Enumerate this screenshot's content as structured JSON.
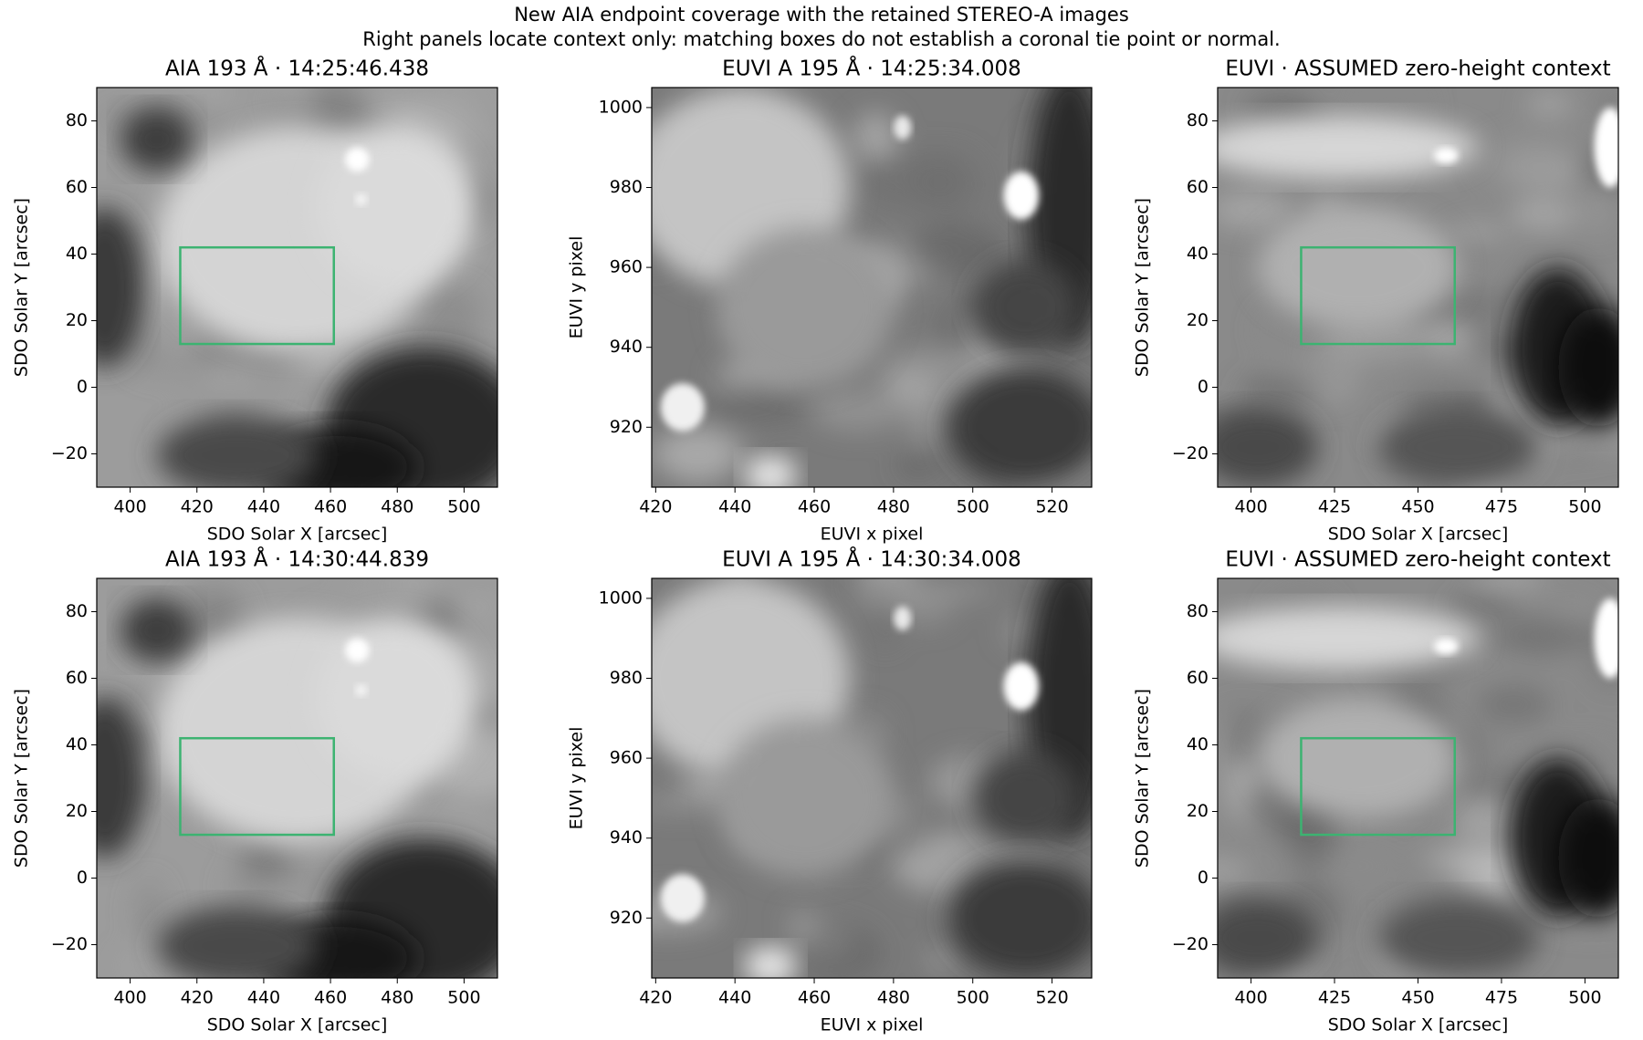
{
  "figure_title": "New AIA endpoint coverage with the retained STEREO-A images",
  "figure_subtitle": "Right panels locate context only: matching boxes do not establish a coronal tie point or normal.",
  "chart_data": [
    {
      "type": "image",
      "title": "AIA 193 Å · 14:25:46.438",
      "xlabel": "SDO Solar X [arcsec]",
      "ylabel": "SDO Solar Y [arcsec]",
      "xlim": [
        390,
        510
      ],
      "ylim": [
        -30,
        90
      ],
      "xticks": [
        400,
        420,
        440,
        460,
        480,
        500
      ],
      "yticks": [
        {
          "value": -20,
          "label": "−20"
        },
        0,
        20,
        40,
        60,
        80
      ],
      "box": {
        "x": [
          415,
          461
        ],
        "y": [
          13,
          42
        ],
        "color": "#3cb371"
      }
    },
    {
      "type": "image",
      "title": "EUVI A 195 Å · 14:25:34.008",
      "xlabel": "EUVI x pixel",
      "ylabel": "EUVI y pixel",
      "xlim": [
        419,
        530
      ],
      "ylim": [
        905,
        1005
      ],
      "xticks": [
        420,
        440,
        460,
        480,
        500,
        520
      ],
      "yticks": [
        920,
        940,
        960,
        980,
        1000
      ]
    },
    {
      "type": "image",
      "title": "EUVI · ASSUMED zero-height context",
      "xlabel": "SDO Solar X [arcsec]",
      "ylabel": "SDO Solar Y [arcsec]",
      "xlim": [
        390,
        510
      ],
      "ylim": [
        -30,
        90
      ],
      "xticks": [
        400,
        425,
        450,
        475,
        500
      ],
      "yticks": [
        {
          "value": -20,
          "label": "−20"
        },
        0,
        20,
        40,
        60,
        80
      ],
      "box": {
        "x": [
          415,
          461
        ],
        "y": [
          13,
          42
        ],
        "color": "#3cb371"
      }
    },
    {
      "type": "image",
      "title": "AIA 193 Å · 14:30:44.839",
      "xlabel": "SDO Solar X [arcsec]",
      "ylabel": "SDO Solar Y [arcsec]",
      "xlim": [
        390,
        510
      ],
      "ylim": [
        -30,
        90
      ],
      "xticks": [
        400,
        420,
        440,
        460,
        480,
        500
      ],
      "yticks": [
        {
          "value": -20,
          "label": "−20"
        },
        0,
        20,
        40,
        60,
        80
      ],
      "box": {
        "x": [
          415,
          461
        ],
        "y": [
          13,
          42
        ],
        "color": "#3cb371"
      }
    },
    {
      "type": "image",
      "title": "EUVI A 195 Å · 14:30:34.008",
      "xlabel": "EUVI x pixel",
      "ylabel": "EUVI y pixel",
      "xlim": [
        419,
        530
      ],
      "ylim": [
        905,
        1005
      ],
      "xticks": [
        420,
        440,
        460,
        480,
        500,
        520
      ],
      "yticks": [
        920,
        940,
        960,
        980,
        1000
      ]
    },
    {
      "type": "image",
      "title": "EUVI · ASSUMED zero-height context",
      "xlabel": "SDO Solar X [arcsec]",
      "ylabel": "SDO Solar Y [arcsec]",
      "xlim": [
        390,
        510
      ],
      "ylim": [
        -30,
        90
      ],
      "xticks": [
        400,
        425,
        450,
        475,
        500
      ],
      "yticks": [
        {
          "value": -20,
          "label": "−20"
        },
        0,
        20,
        40,
        60,
        80
      ],
      "box": {
        "x": [
          415,
          461
        ],
        "y": [
          13,
          42
        ],
        "color": "#3cb371"
      }
    }
  ]
}
